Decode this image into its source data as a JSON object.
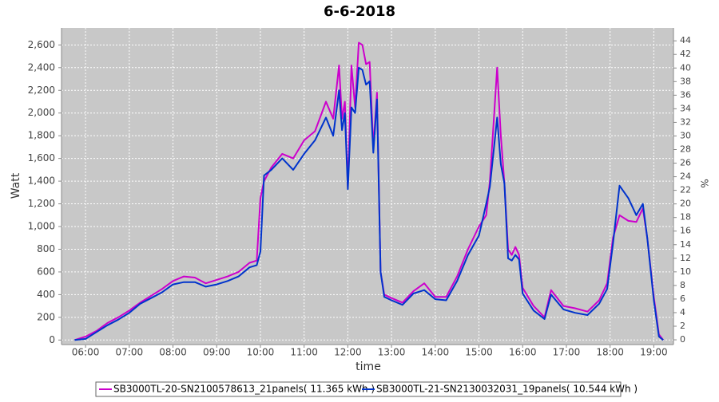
{
  "chart_data": {
    "type": "line",
    "title": "6-6-2018",
    "x_label": "time",
    "y_label": "Watt",
    "y2_label": "%",
    "x": [
      "05:45",
      "06:00",
      "06:15",
      "06:30",
      "06:45",
      "07:00",
      "07:15",
      "07:30",
      "07:45",
      "08:00",
      "08:15",
      "08:30",
      "08:45",
      "09:00",
      "09:15",
      "09:30",
      "09:45",
      "09:55",
      "10:00",
      "10:05",
      "10:15",
      "10:30",
      "10:45",
      "11:00",
      "11:15",
      "11:30",
      "11:40",
      "11:48",
      "11:52",
      "11:56",
      "12:00",
      "12:05",
      "12:10",
      "12:15",
      "12:20",
      "12:25",
      "12:30",
      "12:35",
      "12:40",
      "12:45",
      "12:50",
      "13:00",
      "13:15",
      "13:30",
      "13:45",
      "14:00",
      "14:15",
      "14:30",
      "14:45",
      "15:00",
      "15:10",
      "15:15",
      "15:25",
      "15:30",
      "15:35",
      "15:40",
      "15:45",
      "15:50",
      "15:55",
      "16:00",
      "16:15",
      "16:30",
      "16:39",
      "16:56",
      "17:12",
      "17:29",
      "17:45",
      "17:56",
      "18:04",
      "18:13",
      "18:25",
      "18:36",
      "18:45",
      "18:51",
      "19:00",
      "19:07",
      "19:13"
    ],
    "series": [
      {
        "name": "SB3000TL-20-SN2100578613_21panels( 11.365 kWh )",
        "color": "#cc00cc",
        "values": [
          0,
          30,
          80,
          150,
          200,
          260,
          330,
          390,
          450,
          520,
          560,
          550,
          500,
          530,
          560,
          600,
          680,
          700,
          1250,
          1400,
          1520,
          1640,
          1600,
          1760,
          1840,
          2100,
          1950,
          2420,
          1950,
          2100,
          1350,
          2420,
          2050,
          2620,
          2600,
          2430,
          2450,
          1700,
          2180,
          600,
          400,
          370,
          330,
          430,
          500,
          380,
          380,
          560,
          800,
          1000,
          1100,
          1400,
          2400,
          1800,
          1380,
          800,
          750,
          820,
          750,
          460,
          300,
          200,
          440,
          300,
          280,
          250,
          350,
          500,
          900,
          1100,
          1050,
          1040,
          1160,
          900,
          380,
          50,
          0
        ]
      },
      {
        "name": "SB3000TL-21-SN2130032031_19panels( 10.544 kWh )",
        "color": "#0033cc",
        "values": [
          0,
          10,
          70,
          130,
          180,
          240,
          320,
          370,
          420,
          490,
          510,
          510,
          470,
          490,
          520,
          560,
          640,
          660,
          780,
          1450,
          1500,
          1600,
          1500,
          1640,
          1760,
          1960,
          1800,
          2200,
          1850,
          2000,
          1330,
          2050,
          2000,
          2400,
          2380,
          2250,
          2280,
          1650,
          2120,
          600,
          380,
          350,
          310,
          410,
          440,
          360,
          350,
          520,
          750,
          920,
          1200,
          1350,
          1960,
          1550,
          1380,
          720,
          700,
          750,
          710,
          410,
          260,
          185,
          400,
          270,
          240,
          220,
          320,
          450,
          850,
          1360,
          1250,
          1100,
          1200,
          900,
          350,
          30,
          0
        ]
      }
    ],
    "xlim": [
      "05:27",
      "19:27"
    ],
    "xticks": [
      "06:00",
      "07:00",
      "08:00",
      "09:00",
      "10:00",
      "11:00",
      "12:00",
      "13:00",
      "14:00",
      "15:00",
      "16:00",
      "17:00",
      "18:00",
      "19:00"
    ],
    "ylim": [
      -40,
      2750
    ],
    "yticks": [
      0,
      200,
      400,
      600,
      800,
      {
        "value": 1000,
        "label": "1,000"
      },
      {
        "value": 1200,
        "label": "1,200"
      },
      {
        "value": 1400,
        "label": "1,400"
      },
      {
        "value": 1600,
        "label": "1,600"
      },
      {
        "value": 1800,
        "label": "1,800"
      },
      {
        "value": 2000,
        "label": "2,000"
      },
      {
        "value": 2200,
        "label": "2,200"
      },
      {
        "value": 2400,
        "label": "2,400"
      },
      {
        "value": 2600,
        "label": "2,600"
      }
    ],
    "y2lim": [
      -0.7,
      45.9
    ],
    "y2ticks": [
      0,
      2,
      4,
      6,
      8,
      10,
      12,
      14,
      16,
      18,
      20,
      22,
      24,
      26,
      28,
      30,
      32,
      34,
      36,
      38,
      40,
      42,
      44
    ],
    "grid": true,
    "legend": "bottom"
  }
}
